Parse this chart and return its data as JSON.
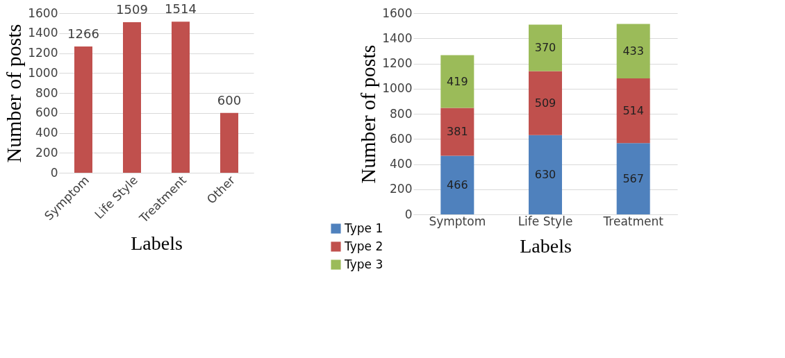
{
  "chart_data": [
    {
      "type": "bar",
      "xlabel": "Labels",
      "ylabel": "Number of posts",
      "categories": [
        "Symptom",
        "Life Style",
        "Treatment",
        "Other"
      ],
      "series": [
        {
          "color": "#c0504d",
          "values": [
            1266,
            1509,
            1514,
            600
          ]
        }
      ],
      "ylim": [
        0,
        1600
      ],
      "yticks": [
        0,
        200,
        400,
        600,
        800,
        1000,
        1200,
        1400,
        1600
      ],
      "grid": "y",
      "data_labels": true,
      "legend": false
    },
    {
      "type": "bar",
      "stacked": true,
      "xlabel": "Labels",
      "ylabel": "Number of posts",
      "categories": [
        "Symptom",
        "Life Style",
        "Treatment"
      ],
      "series": [
        {
          "name": "Type 1",
          "color": "#4f81bd",
          "values": [
            466,
            630,
            567
          ]
        },
        {
          "name": "Type 2",
          "color": "#c0504d",
          "values": [
            381,
            509,
            514
          ]
        },
        {
          "name": "Type 3",
          "color": "#9bbb59",
          "values": [
            419,
            370,
            433
          ]
        }
      ],
      "ylim": [
        0,
        1600
      ],
      "yticks": [
        0,
        200,
        400,
        600,
        800,
        1000,
        1200,
        1400,
        1600
      ],
      "grid": "y",
      "data_labels": true,
      "legend": "bottom left"
    }
  ]
}
